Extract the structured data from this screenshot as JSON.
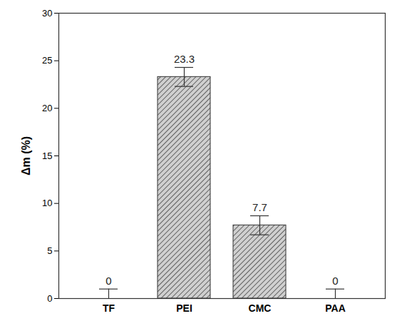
{
  "chart_data": {
    "type": "bar",
    "categories": [
      "TF",
      "PEI",
      "CMC",
      "PAA"
    ],
    "values": [
      0,
      23.3,
      7.7,
      0
    ],
    "errors": [
      1,
      1,
      1,
      1
    ],
    "y_label": "Δm (%)",
    "ylim": [
      0,
      30
    ],
    "yticks": [
      0,
      5,
      10,
      15,
      20,
      25,
      30
    ],
    "color": "#d0d0d0",
    "data_labels": true
  }
}
